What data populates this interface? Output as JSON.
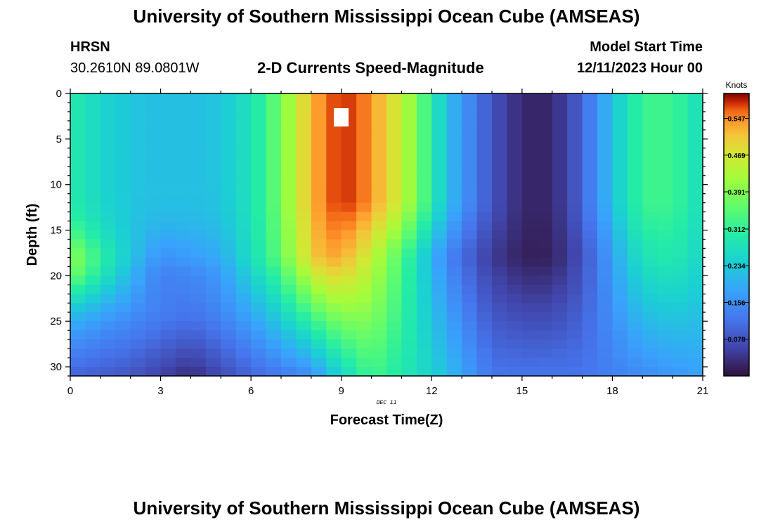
{
  "page": {
    "title": "University of Southern Mississippi Ocean Cube (AMSEAS)",
    "station": "HRSN",
    "coords": "30.2610N  89.0801W",
    "subtitle": "2-D Currents Speed-Magnitude",
    "model_start_label": "Model Start Time",
    "model_start_value": "12/11/2023 Hour 00",
    "footer_title": "University of Southern Mississippi Ocean Cube (AMSEAS)"
  },
  "chart_data": {
    "type": "heatmap",
    "title": "2-D Currents Speed-Magnitude",
    "xlabel": "Forecast Time(Z)",
    "ylabel": "Depth (ft)",
    "x_sublabel": "DEC 11",
    "xlim": [
      0,
      21
    ],
    "ylim": [
      0,
      31
    ],
    "x_ticks": [
      0,
      3,
      6,
      9,
      12,
      15,
      18,
      21
    ],
    "y_ticks": [
      0,
      5,
      10,
      15,
      20,
      25,
      30
    ],
    "colorbar_label": "Knots",
    "colorbar_range": [
      0,
      0.6
    ],
    "colorbar_ticks": [
      0.078,
      0.156,
      0.234,
      0.312,
      0.391,
      0.469,
      0.547
    ],
    "time_hours": [
      0,
      0.5,
      1,
      1.5,
      2,
      2.5,
      3,
      3.5,
      4,
      4.5,
      5,
      5.5,
      6,
      6.5,
      7,
      7.5,
      8,
      8.5,
      9,
      9.5,
      10,
      10.5,
      11,
      11.5,
      12,
      12.5,
      13,
      13.5,
      14,
      14.5,
      15,
      15.5,
      16,
      16.5,
      17,
      17.5,
      18,
      18.5,
      19,
      19.5,
      20,
      20.5,
      21
    ],
    "surface_speed_knots": [
      0.29,
      0.28,
      0.25,
      0.24,
      0.23,
      0.22,
      0.22,
      0.22,
      0.22,
      0.22,
      0.23,
      0.25,
      0.28,
      0.32,
      0.38,
      0.45,
      0.52,
      0.56,
      0.58,
      0.57,
      0.54,
      0.5,
      0.45,
      0.38,
      0.3,
      0.22,
      0.17,
      0.12,
      0.08,
      0.05,
      0.03,
      0.02,
      0.03,
      0.06,
      0.1,
      0.16,
      0.22,
      0.28,
      0.32,
      0.33,
      0.32,
      0.3,
      0.26
    ],
    "profile_notes": "Speed peaks near 0.58 kn around hour 9 at 2-10 ft; minimum near 0.02 kn around hour 15; deep water near 30 ft is slower except at hour 0 where 18-20 ft reaches about 0.40 kn."
  }
}
